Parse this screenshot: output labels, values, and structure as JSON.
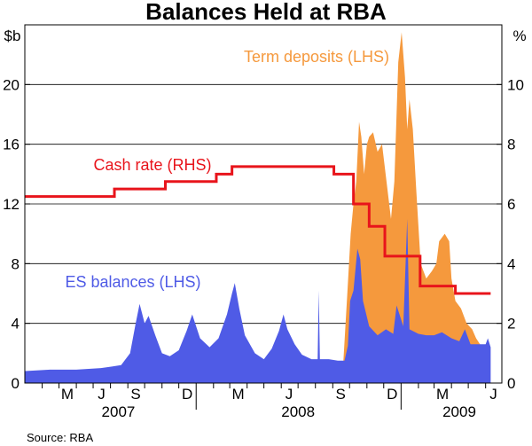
{
  "chart_data": {
    "type": "area",
    "title": "Balances Held at RBA",
    "left_unit": "$b",
    "right_unit": "%",
    "left_axis": {
      "ylim": [
        0,
        24
      ],
      "ticks": [
        "0",
        "4",
        "8",
        "12",
        "16",
        "20"
      ]
    },
    "right_axis": {
      "ylim": [
        0,
        12
      ],
      "ticks": [
        "0",
        "2",
        "4",
        "6",
        "8",
        "10"
      ]
    },
    "x_range": [
      "2007-03-01",
      "2009-06-30"
    ],
    "month_labels": [
      {
        "label": "M",
        "date": "2007-05-16"
      },
      {
        "label": "J",
        "date": "2007-07-16"
      },
      {
        "label": "S",
        "date": "2007-09-15"
      },
      {
        "label": "D",
        "date": "2007-12-16"
      },
      {
        "label": "M",
        "date": "2008-03-16"
      },
      {
        "label": "J",
        "date": "2008-06-15"
      },
      {
        "label": "S",
        "date": "2008-09-15"
      },
      {
        "label": "D",
        "date": "2008-12-16"
      },
      {
        "label": "M",
        "date": "2009-03-16"
      },
      {
        "label": "J",
        "date": "2009-06-15"
      }
    ],
    "year_labels": [
      {
        "label": "2007",
        "date": "2007-08-15"
      },
      {
        "label": "2008",
        "date": "2008-07-01"
      },
      {
        "label": "2009",
        "date": "2009-04-15"
      }
    ],
    "grid": true,
    "series": [
      {
        "name": "ES balances (LHS)",
        "axis": "left",
        "color": "#4f5be6",
        "kind": "area",
        "points": [
          [
            "2007-03-01",
            0.8
          ],
          [
            "2007-04-15",
            0.9
          ],
          [
            "2007-06-01",
            0.9
          ],
          [
            "2007-07-15",
            1.0
          ],
          [
            "2007-08-20",
            1.2
          ],
          [
            "2007-09-05",
            2.0
          ],
          [
            "2007-09-15",
            4.0
          ],
          [
            "2007-09-22",
            5.3
          ],
          [
            "2007-10-01",
            4.0
          ],
          [
            "2007-10-08",
            4.5
          ],
          [
            "2007-10-20",
            3.2
          ],
          [
            "2007-11-01",
            2.0
          ],
          [
            "2007-11-15",
            1.8
          ],
          [
            "2007-12-01",
            2.2
          ],
          [
            "2007-12-15",
            3.5
          ],
          [
            "2007-12-25",
            4.6
          ],
          [
            "2008-01-08",
            3.0
          ],
          [
            "2008-01-25",
            2.4
          ],
          [
            "2008-02-10",
            3.0
          ],
          [
            "2008-02-25",
            4.6
          ],
          [
            "2008-03-05",
            6.0
          ],
          [
            "2008-03-10",
            6.7
          ],
          [
            "2008-03-18",
            5.0
          ],
          [
            "2008-03-28",
            3.2
          ],
          [
            "2008-04-15",
            2.0
          ],
          [
            "2008-05-01",
            1.6
          ],
          [
            "2008-05-15",
            2.3
          ],
          [
            "2008-05-28",
            3.5
          ],
          [
            "2008-06-05",
            4.6
          ],
          [
            "2008-06-12",
            3.6
          ],
          [
            "2008-06-25",
            2.6
          ],
          [
            "2008-07-08",
            1.9
          ],
          [
            "2008-07-25",
            1.6
          ],
          [
            "2008-08-05",
            1.6
          ],
          [
            "2008-08-07",
            6.2
          ],
          [
            "2008-08-09",
            1.6
          ],
          [
            "2008-08-25",
            1.6
          ],
          [
            "2008-09-10",
            1.5
          ],
          [
            "2008-09-22",
            1.5
          ],
          [
            "2008-09-28",
            2.5
          ],
          [
            "2008-10-02",
            5.5
          ],
          [
            "2008-10-08",
            6.2
          ],
          [
            "2008-10-15",
            9.0
          ],
          [
            "2008-10-20",
            8.3
          ],
          [
            "2008-10-25",
            5.5
          ],
          [
            "2008-11-05",
            3.8
          ],
          [
            "2008-11-20",
            3.2
          ],
          [
            "2008-12-05",
            3.6
          ],
          [
            "2008-12-18",
            3.3
          ],
          [
            "2008-12-24",
            5.2
          ],
          [
            "2009-01-05",
            3.8
          ],
          [
            "2009-01-12",
            11.0
          ],
          [
            "2009-01-16",
            3.6
          ],
          [
            "2009-02-01",
            3.3
          ],
          [
            "2009-02-15",
            3.2
          ],
          [
            "2009-03-01",
            3.2
          ],
          [
            "2009-03-15",
            3.4
          ],
          [
            "2009-04-01",
            3.0
          ],
          [
            "2009-04-15",
            2.8
          ],
          [
            "2009-04-25",
            3.6
          ],
          [
            "2009-05-05",
            2.6
          ],
          [
            "2009-05-20",
            2.6
          ],
          [
            "2009-06-01",
            2.6
          ],
          [
            "2009-06-05",
            3.0
          ],
          [
            "2009-06-10",
            2.4
          ]
        ]
      },
      {
        "name": "Term deposits (LHS)",
        "axis": "left",
        "color": "#f5993d",
        "kind": "area_stacked_total",
        "points": [
          [
            "2008-09-20",
            1.5
          ],
          [
            "2008-09-27",
            6.0
          ],
          [
            "2008-10-03",
            10.0
          ],
          [
            "2008-10-08",
            12.0
          ],
          [
            "2008-10-13",
            13.5
          ],
          [
            "2008-10-18",
            17.5
          ],
          [
            "2008-10-22",
            16.5
          ],
          [
            "2008-10-27",
            14.0
          ],
          [
            "2008-11-01",
            16.0
          ],
          [
            "2008-11-05",
            16.5
          ],
          [
            "2008-11-12",
            16.8
          ],
          [
            "2008-11-20",
            15.5
          ],
          [
            "2008-11-28",
            16.0
          ],
          [
            "2008-12-06",
            13.5
          ],
          [
            "2008-12-14",
            11.0
          ],
          [
            "2008-12-20",
            13.5
          ],
          [
            "2008-12-27",
            21.5
          ],
          [
            "2009-01-02",
            23.5
          ],
          [
            "2009-01-05",
            22.0
          ],
          [
            "2009-01-08",
            20.5
          ],
          [
            "2009-01-12",
            17.0
          ],
          [
            "2009-01-16",
            19.0
          ],
          [
            "2009-01-22",
            17.0
          ],
          [
            "2009-01-28",
            13.0
          ],
          [
            "2009-02-05",
            8.0
          ],
          [
            "2009-02-15",
            7.0
          ],
          [
            "2009-02-25",
            7.5
          ],
          [
            "2009-03-05",
            8.0
          ],
          [
            "2009-03-10",
            9.5
          ],
          [
            "2009-03-20",
            10.0
          ],
          [
            "2009-03-28",
            9.5
          ],
          [
            "2009-04-01",
            7.0
          ],
          [
            "2009-04-08",
            5.5
          ],
          [
            "2009-04-18",
            5.0
          ],
          [
            "2009-04-28",
            4.0
          ],
          [
            "2009-05-08",
            3.6
          ],
          [
            "2009-05-15",
            3.0
          ],
          [
            "2009-05-22",
            2.6
          ]
        ]
      },
      {
        "name": "Cash rate (RHS)",
        "axis": "right",
        "color": "#e8141b",
        "kind": "step",
        "points": [
          [
            "2007-03-01",
            6.25
          ],
          [
            "2007-08-08",
            6.5
          ],
          [
            "2007-11-07",
            6.75
          ],
          [
            "2008-02-06",
            7.0
          ],
          [
            "2008-03-05",
            7.25
          ],
          [
            "2008-09-03",
            7.0
          ],
          [
            "2008-10-08",
            6.0
          ],
          [
            "2008-11-05",
            5.25
          ],
          [
            "2008-12-03",
            4.25
          ],
          [
            "2009-02-04",
            3.25
          ],
          [
            "2009-04-08",
            3.0
          ],
          [
            "2009-06-10",
            3.0
          ]
        ]
      }
    ],
    "annotations": [
      {
        "text": "Term deposits (LHS)",
        "color": "#f5993d"
      },
      {
        "text": "Cash rate (RHS)",
        "color": "#e8141b"
      },
      {
        "text": "ES balances (LHS)",
        "color": "#4f5be6"
      }
    ]
  },
  "source": "Source: RBA"
}
